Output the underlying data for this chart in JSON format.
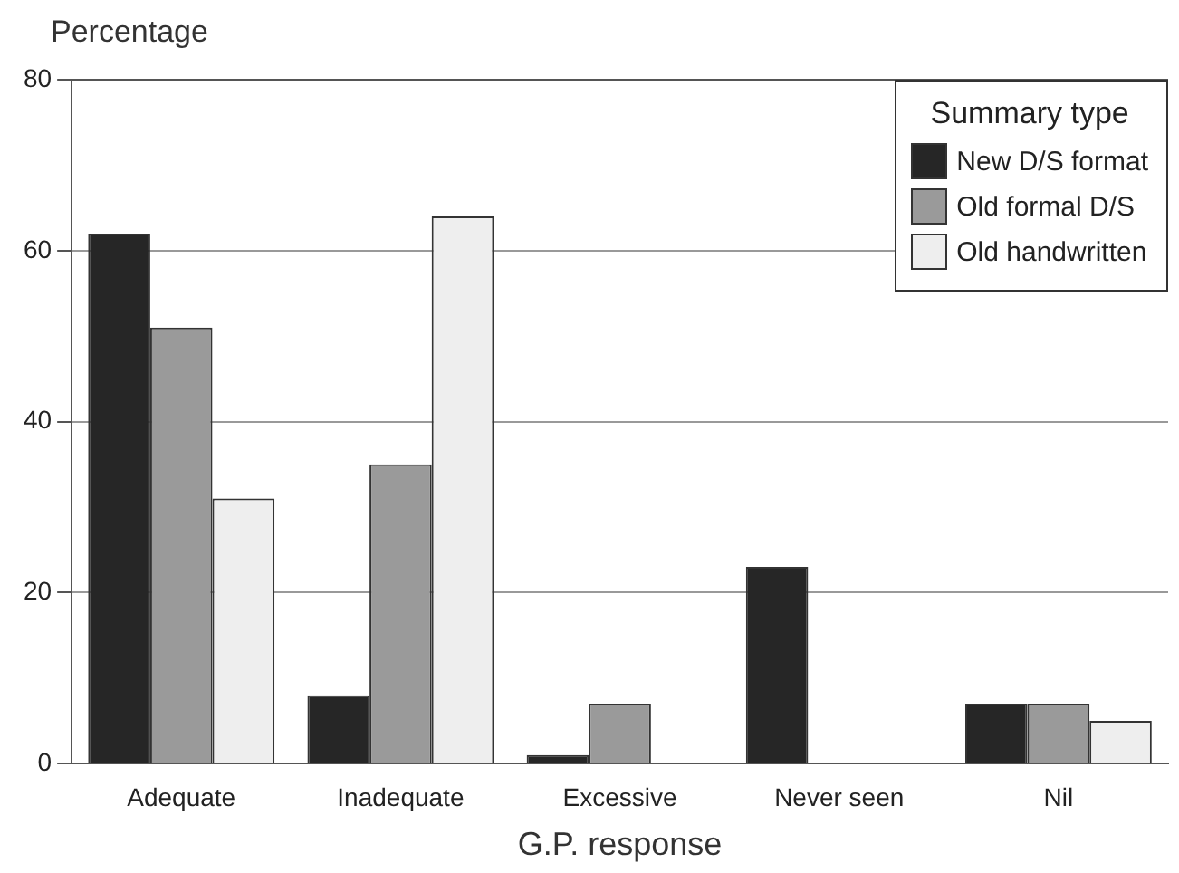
{
  "chart_data": {
    "type": "bar",
    "ylabel": "Percentage",
    "xlabel": "G.P. response",
    "legend_title": "Summary type",
    "categories": [
      "Adequate",
      "Inadequate",
      "Excessive",
      "Never seen",
      "Nil"
    ],
    "series": [
      {
        "name": "New D/S format",
        "color": "#262626",
        "values": [
          62,
          8,
          1,
          23,
          7
        ]
      },
      {
        "name": "Old formal D/S",
        "color": "#9a9a9a",
        "values": [
          51,
          35,
          7,
          0,
          7
        ]
      },
      {
        "name": "Old handwritten",
        "color": "#eeeeee",
        "values": [
          31,
          64,
          0,
          0,
          5
        ]
      }
    ],
    "ylim": [
      0,
      80
    ],
    "yticks": [
      0,
      20,
      40,
      60,
      80
    ],
    "grid": "y",
    "legend": "top right"
  }
}
